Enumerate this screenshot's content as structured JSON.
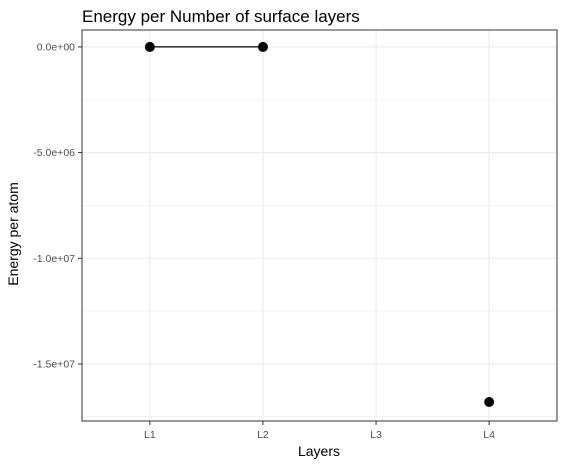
{
  "chart_data": {
    "type": "line",
    "title": "Energy per Number of surface layers",
    "xlabel": "Layers",
    "ylabel": "Energy per atom",
    "categories": [
      "L1",
      "L2",
      "L3",
      "L4"
    ],
    "y_ticks": [
      0,
      -5000000,
      -10000000,
      -15000000
    ],
    "y_tick_labels": [
      "0.0e+00",
      "-5.0e+06",
      "-1.0e+07",
      "-1.5e+07"
    ],
    "ylim": [
      -17700000,
      800000
    ],
    "grid": true,
    "series": [
      {
        "points": [
          {
            "x": "L1",
            "y": 0
          },
          {
            "x": "L2",
            "y": 0
          },
          {
            "x": "L3",
            "y": null
          },
          {
            "x": "L4",
            "y": -16800000
          }
        ]
      }
    ],
    "colors": {
      "point": "#000000",
      "line": "#000000",
      "grid": "#ebebeb",
      "panel_border": "#333333"
    }
  }
}
